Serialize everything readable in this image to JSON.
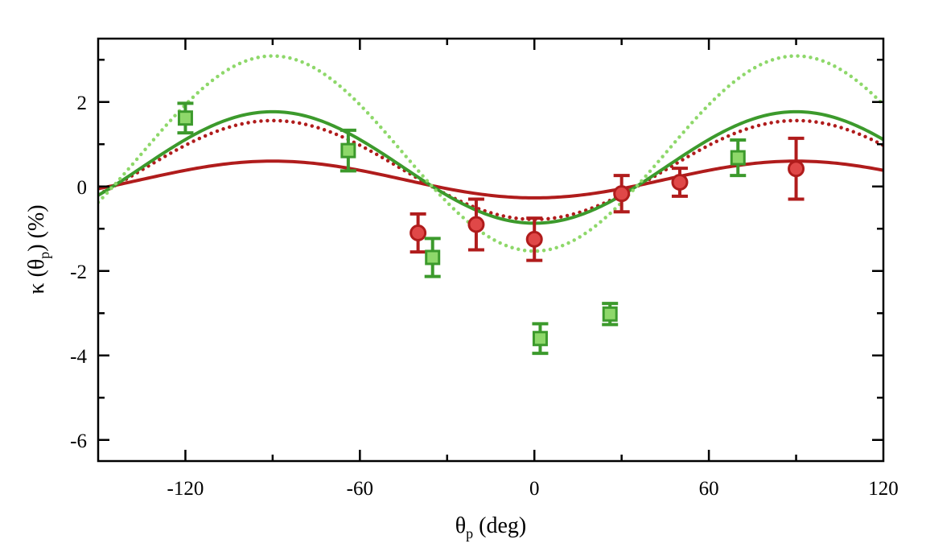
{
  "chart_data": {
    "type": "scatter",
    "xlabel": {
      "main": "θ",
      "sub": "p",
      "rest": " (deg)"
    },
    "ylabel": {
      "pre": "κ (θ",
      "sub": "p",
      "post": ") (%)"
    },
    "xlim": [
      -150,
      120
    ],
    "ylim": [
      -6.5,
      3.5
    ],
    "xticks": [
      -120,
      -60,
      0,
      60,
      120
    ],
    "xtick_labels": [
      "-120",
      "-60",
      "0",
      "60",
      "120"
    ],
    "yticks": [
      -6,
      -4,
      -2,
      0,
      2
    ],
    "ytick_labels": [
      "-6",
      "-4",
      "-2",
      "0",
      "2"
    ],
    "x_minor_step": 30,
    "y_minor_step": 1,
    "grid": false,
    "colors": {
      "red": "#b01c1c",
      "red_fill": "#e04848",
      "green": "#3c9a2c",
      "green_fill": "#8ed86a",
      "light_green": "#8ed86a"
    },
    "curves": [
      {
        "id": "red-solid-fit",
        "color": "#b01c1c",
        "style": "solid",
        "offset": -0.27,
        "amplitude": 0.87
      },
      {
        "id": "red-dotted-curve",
        "color": "#b01c1c",
        "style": "dotted",
        "offset": -0.78,
        "amplitude": 2.34
      },
      {
        "id": "green-solid-fit",
        "color": "#3c9a2c",
        "style": "solid",
        "offset": -0.87,
        "amplitude": 2.64
      },
      {
        "id": "light-green-dotted-curve",
        "color": "#8ed86a",
        "style": "dotted",
        "offset": -1.53,
        "amplitude": 4.62
      }
    ],
    "series": [
      {
        "marker": "circle",
        "color": "#b01c1c",
        "fill": "#e04848",
        "points": [
          {
            "x": -40,
            "y": -1.1,
            "err": 0.45
          },
          {
            "x": -20,
            "y": -0.9,
            "err": 0.6
          },
          {
            "x": 0,
            "y": -1.25,
            "err": 0.5
          },
          {
            "x": 30,
            "y": -0.17,
            "err": 0.43
          },
          {
            "x": 50,
            "y": 0.1,
            "err": 0.33
          },
          {
            "x": 90,
            "y": 0.42,
            "err": 0.72
          }
        ]
      },
      {
        "marker": "square",
        "color": "#3c9a2c",
        "fill": "#8ed86a",
        "points": [
          {
            "x": -120,
            "y": 1.62,
            "err": 0.35
          },
          {
            "x": -64,
            "y": 0.85,
            "err": 0.48
          },
          {
            "x": -35,
            "y": -1.68,
            "err": 0.45
          },
          {
            "x": 2,
            "y": -3.6,
            "err": 0.35
          },
          {
            "x": 26,
            "y": -3.02,
            "err": 0.25
          },
          {
            "x": 70,
            "y": 0.68,
            "err": 0.42
          }
        ]
      }
    ]
  }
}
